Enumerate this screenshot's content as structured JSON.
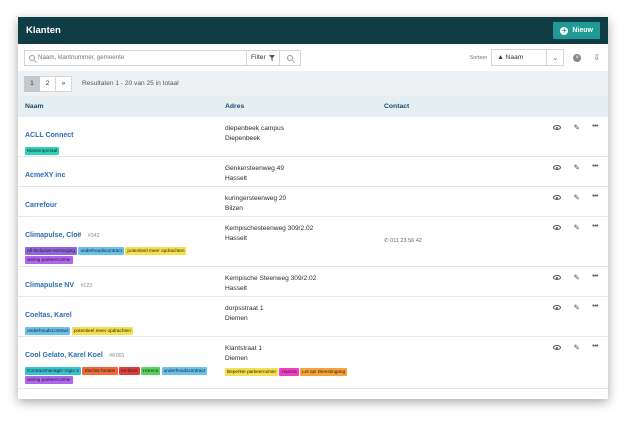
{
  "header": {
    "title": "Klanten",
    "new_label": "Nieuw"
  },
  "toolbar": {
    "search_placeholder": "Naam, klantnummer, gemeente",
    "filter_label": "Filter",
    "sort_label": "Sorteer",
    "sort_value": "▲ Naam"
  },
  "pager": {
    "pages": [
      "1",
      "2",
      "»"
    ],
    "results_text": "Resultaten 1 - 20 van 25 in totaal"
  },
  "table": {
    "headers": {
      "name": "Naam",
      "address": "Adres",
      "contact": "Contact"
    },
    "rows": [
      {
        "name": "ACLL Connect",
        "code": "",
        "address_line1": "diepenbeek campus",
        "address_line2": "Diepenbeek",
        "contact": "",
        "tags": [
          {
            "label": "Klantenportaal",
            "color": "#2ed3b7"
          }
        ],
        "address_tags": []
      },
      {
        "name": "AcmeXY inc",
        "code": "",
        "address_line1": "Genkersteenweg 49",
        "address_line2": "Hasselt",
        "contact": "",
        "tags": [],
        "address_tags": []
      },
      {
        "name": "Carrefour",
        "code": "",
        "address_line1": "kuringersteenweg 20",
        "address_line2": "Bilzen",
        "contact": "",
        "tags": [],
        "address_tags": []
      },
      {
        "name": "Climapulse, Cloë",
        "code": "#342",
        "address_line1": "Kempischesteenweg 309/2.02",
        "address_line2": "Hasselt",
        "contact": "011 23 56 42",
        "tags": [
          {
            "label": "All-inclusive verzorging",
            "color": "#8f66e0"
          },
          {
            "label": "onderhoudscontract",
            "color": "#69c1ee"
          },
          {
            "label": "potentieel meer opdrachten",
            "color": "#f4e04d"
          },
          {
            "label": "weinig parkeerruimte",
            "color": "#b266ef"
          }
        ],
        "address_tags": []
      },
      {
        "name": "Climapulse NV",
        "code": "#123",
        "address_line1": "Kempische Steenweg 309/2.02",
        "address_line2": "Hasselt",
        "contact": "",
        "tags": [],
        "address_tags": []
      },
      {
        "name": "Coeltas, Karel",
        "code": "",
        "address_line1": "dorpsstraat 1",
        "address_line2": "Diemen",
        "contact": "",
        "tags": [
          {
            "label": "onderhoudscontract",
            "color": "#69c1ee"
          },
          {
            "label": "potentieel meer opdrachten",
            "color": "#f4e04d"
          }
        ],
        "address_tags": []
      },
      {
        "name": "Cool Gelato, Karel Koel",
        "code": "#K001",
        "address_line1": "Klantstraat 1",
        "address_line2": "Diemen",
        "contact": "",
        "tags": [
          {
            "label": "Contractmanager regio 2",
            "color": "#35c3cf"
          },
          {
            "label": "Slechte betaler",
            "color": "#f06a3a"
          },
          {
            "label": "ex-klant",
            "color": "#e23b3b"
          },
          {
            "label": "Horeca",
            "color": "#55d35b"
          },
          {
            "label": "onderhoudscontract",
            "color": "#69c1ee"
          },
          {
            "label": "weinig parkeerruimte",
            "color": "#b266ef"
          }
        ],
        "address_tags": [
          {
            "label": "Beperkte parkeerruimte",
            "color": "#f4e04d"
          },
          {
            "label": "Horeca",
            "color": "#f03fc4"
          },
          {
            "label": "Let op! Dienstingang",
            "color": "#f6a33a"
          }
        ]
      }
    ]
  }
}
